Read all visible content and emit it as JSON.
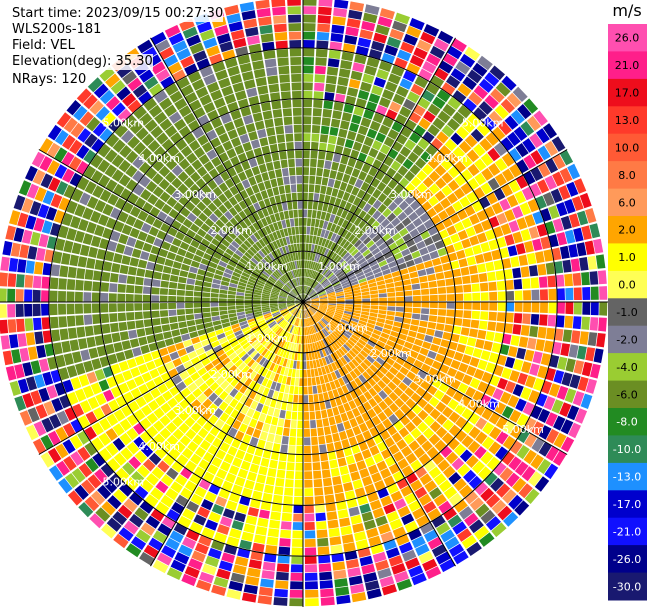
{
  "info": {
    "start_time": "Start time: 2023/09/15 00:27:30",
    "instrument": "WLS200s-181",
    "field": "Field: VEL",
    "elevation": "Elevation(deg): 35.30",
    "nrays": "NRays: 120"
  },
  "colorbar": {
    "unit": "m/s",
    "ticks": [
      "26.0",
      "21.0",
      "17.0",
      "13.0",
      "10.0",
      "8.0",
      "6.0",
      "2.0",
      "1.0",
      "0.0",
      "-1.0",
      "-2.0",
      "-4.0",
      "-6.0",
      "-8.0",
      "-10.0",
      "-13.0",
      "-17.0",
      "-21.0",
      "-26.0",
      "-30.0"
    ],
    "bins": [
      {
        "lo": 26.0,
        "hi": 30.0,
        "color": "#ff4fb0"
      },
      {
        "lo": 21.0,
        "hi": 26.0,
        "color": "#ff1f8a"
      },
      {
        "lo": 17.0,
        "hi": 21.0,
        "color": "#ee0d1c"
      },
      {
        "lo": 13.0,
        "hi": 17.0,
        "color": "#ff3a2a"
      },
      {
        "lo": 10.0,
        "hi": 13.0,
        "color": "#ff5a35"
      },
      {
        "lo": 8.0,
        "hi": 10.0,
        "color": "#ff7a45"
      },
      {
        "lo": 6.0,
        "hi": 8.0,
        "color": "#ff9a5a"
      },
      {
        "lo": 2.0,
        "hi": 6.0,
        "color": "#ffa500"
      },
      {
        "lo": 1.0,
        "hi": 2.0,
        "color": "#ffff00"
      },
      {
        "lo": 0.0,
        "hi": 1.0,
        "color": "#ffff55"
      },
      {
        "lo": -1.0,
        "hi": 0.0,
        "color": "#646464"
      },
      {
        "lo": -2.0,
        "hi": -1.0,
        "color": "#7e7e96"
      },
      {
        "lo": -4.0,
        "hi": -2.0,
        "color": "#9acd32"
      },
      {
        "lo": -6.0,
        "hi": -4.0,
        "color": "#6b8e23"
      },
      {
        "lo": -8.0,
        "hi": -6.0,
        "color": "#228b22"
      },
      {
        "lo": -10.0,
        "hi": -8.0,
        "color": "#2e8b57"
      },
      {
        "lo": -13.0,
        "hi": -10.0,
        "color": "#1e90ff"
      },
      {
        "lo": -17.0,
        "hi": -13.0,
        "color": "#0000cd"
      },
      {
        "lo": -21.0,
        "hi": -17.0,
        "color": "#1010ff"
      },
      {
        "lo": -26.0,
        "hi": -21.0,
        "color": "#00008b"
      },
      {
        "lo": -30.0,
        "hi": -26.0,
        "color": "#191970"
      }
    ]
  },
  "chart_data": {
    "type": "heatmap",
    "subtype": "polar-ppi",
    "title": "",
    "field": "VEL",
    "nrays": 120,
    "range_max_km": 6.0,
    "range_rings_km": [
      1.0,
      2.0,
      3.0,
      4.0,
      5.0
    ],
    "range_ring_labels": [
      "1.00km",
      "2.00km",
      "3.00km",
      "4.00km",
      "5.00km"
    ],
    "spoke_azimuths_deg": [
      0,
      30,
      60,
      90,
      120,
      150,
      180,
      210,
      240,
      270,
      300,
      330
    ],
    "velocity_range_ms": [
      -30.0,
      30.0
    ],
    "sectors": [
      {
        "az_from": 250,
        "az_to": 360,
        "near_km": 5.0,
        "dominant_velocity_ms": -5.0,
        "note": "green negative region"
      },
      {
        "az_from": 0,
        "az_to": 40,
        "near_km": 3.0,
        "dominant_velocity_ms": -5.0
      },
      {
        "az_from": 40,
        "az_to": 70,
        "near_km": 3.0,
        "dominant_velocity_ms": -1.5
      },
      {
        "az_from": 70,
        "az_to": 180,
        "near_km": 3.0,
        "dominant_velocity_ms": 3.5,
        "note": "orange positive region"
      },
      {
        "az_from": 180,
        "az_to": 250,
        "near_km": 3.0,
        "dominant_velocity_ms": 1.5,
        "note": "yellow positive region"
      },
      {
        "az_from": 0,
        "az_to": 360,
        "far_km": [
          5.0,
          6.0
        ],
        "dominant_velocity_ms": null,
        "note": "noisy outer annulus"
      }
    ]
  }
}
